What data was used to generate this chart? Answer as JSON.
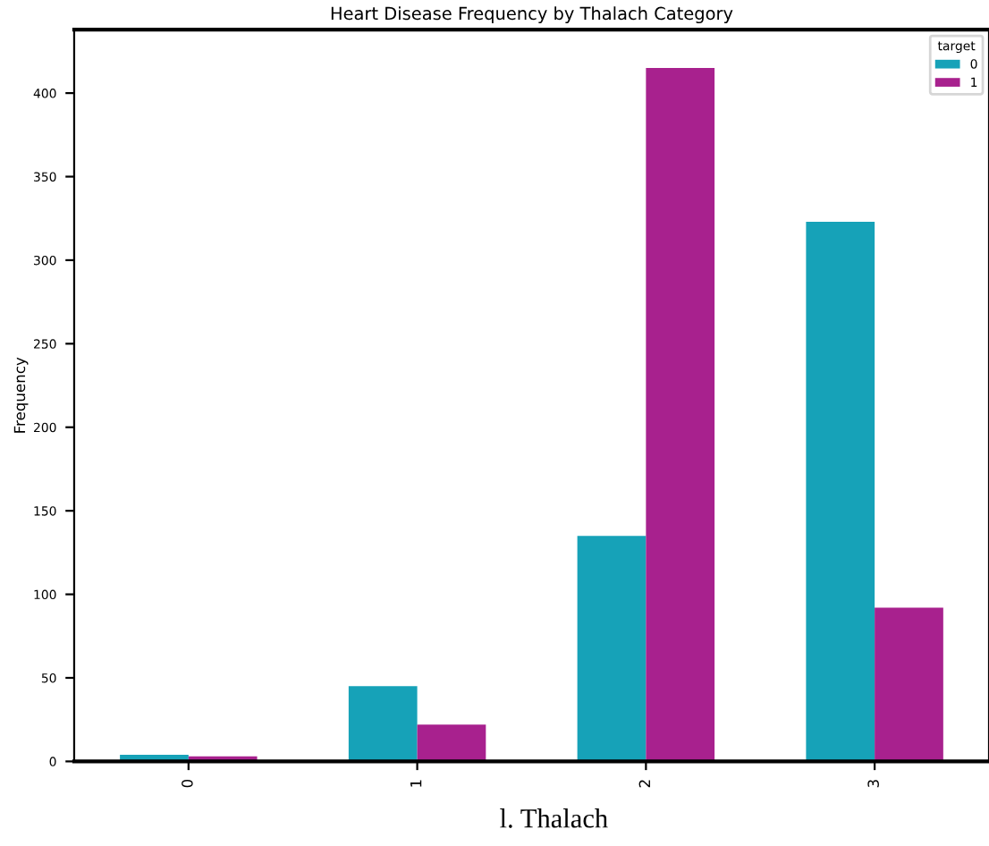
{
  "chart_data": {
    "type": "bar",
    "title": "Heart Disease Frequency by Thalach Category",
    "categories": [
      "0",
      "1",
      "2",
      "3"
    ],
    "series": [
      {
        "name": "0",
        "color": "#16a2b8",
        "values": [
          4,
          45,
          135,
          323
        ]
      },
      {
        "name": "1",
        "color": "#a8218e",
        "values": [
          3,
          22,
          415,
          92
        ]
      }
    ],
    "ylabel": "Frequency",
    "legend_title": "target",
    "legend": "top right",
    "ylim": [
      0,
      438
    ],
    "yticks": [
      0,
      50,
      100,
      150,
      200,
      250,
      300,
      350,
      400
    ],
    "grid": false,
    "annotations": [
      "l. Thalach"
    ]
  }
}
